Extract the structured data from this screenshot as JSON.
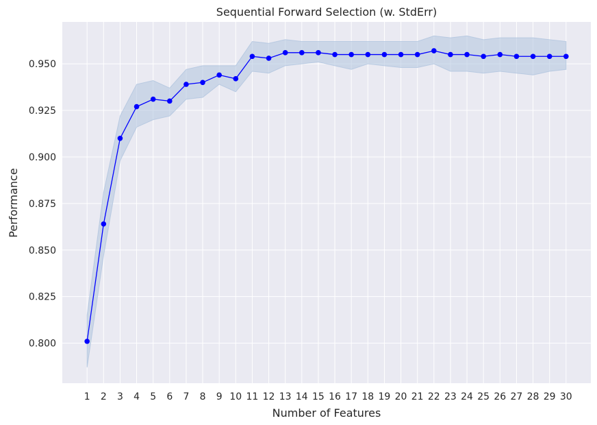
{
  "chart_data": {
    "type": "line",
    "title": "Sequential Forward Selection (w. StdErr)",
    "xlabel": "Number of Features",
    "ylabel": "Performance",
    "x": [
      1,
      2,
      3,
      4,
      5,
      6,
      7,
      8,
      9,
      10,
      11,
      12,
      13,
      14,
      15,
      16,
      17,
      18,
      19,
      20,
      21,
      22,
      23,
      24,
      25,
      26,
      27,
      28,
      29,
      30
    ],
    "series": [
      {
        "values": [
          0.801,
          0.864,
          0.91,
          0.927,
          0.931,
          0.93,
          0.939,
          0.94,
          0.944,
          0.942,
          0.954,
          0.953,
          0.956,
          0.956,
          0.956,
          0.955,
          0.955,
          0.955,
          0.955,
          0.955,
          0.955,
          0.957,
          0.955,
          0.955,
          0.954,
          0.955,
          0.954,
          0.954,
          0.954,
          0.954
        ],
        "lower": [
          0.787,
          0.847,
          0.898,
          0.916,
          0.92,
          0.922,
          0.931,
          0.932,
          0.939,
          0.935,
          0.946,
          0.945,
          0.949,
          0.95,
          0.951,
          0.949,
          0.947,
          0.95,
          0.949,
          0.948,
          0.948,
          0.95,
          0.946,
          0.946,
          0.945,
          0.946,
          0.945,
          0.944,
          0.946,
          0.947
        ],
        "upper": [
          0.815,
          0.881,
          0.922,
          0.939,
          0.941,
          0.937,
          0.947,
          0.949,
          0.949,
          0.949,
          0.962,
          0.961,
          0.963,
          0.962,
          0.962,
          0.962,
          0.962,
          0.962,
          0.962,
          0.962,
          0.962,
          0.965,
          0.964,
          0.965,
          0.963,
          0.964,
          0.964,
          0.964,
          0.963,
          0.962
        ],
        "color": "#0000ff",
        "band_color": "#b0c4de"
      }
    ],
    "xlim": [
      -0.5,
      31.5
    ],
    "ylim": [
      0.7785,
      0.9725
    ],
    "yticks": [
      0.8,
      0.825,
      0.85,
      0.875,
      0.9,
      0.925,
      0.95
    ],
    "yticks_labels": [
      "0.800",
      "0.825",
      "0.850",
      "0.875",
      "0.900",
      "0.925",
      "0.950"
    ],
    "xticks_labels": [
      "1",
      "2",
      "3",
      "4",
      "5",
      "6",
      "7",
      "8",
      "9",
      "10",
      "11",
      "12",
      "13",
      "14",
      "15",
      "16",
      "17",
      "18",
      "19",
      "20",
      "21",
      "22",
      "23",
      "24",
      "25",
      "26",
      "27",
      "28",
      "29",
      "30"
    ],
    "grid": true,
    "background_color": "#eaeaf2",
    "grid_color": "#ffffff"
  }
}
